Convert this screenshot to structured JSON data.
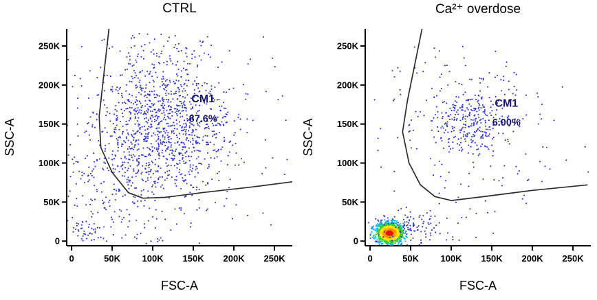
{
  "figure": {
    "background": "#ffffff",
    "dot_color": "#2a2fd4",
    "axis_color": "#000000",
    "gate_color": "#2b2b2b",
    "gate_label_color": "#16166a",
    "density_palette": [
      {
        "r": 0.45,
        "color": "#e81500"
      },
      {
        "r": 0.9,
        "color": "#ff9800"
      },
      {
        "r": 1.35,
        "color": "#ffe000"
      },
      {
        "r": 1.9,
        "color": "#2ecc2e"
      },
      {
        "r": 2.6,
        "color": "#00b4e0"
      },
      {
        "r": 99,
        "color": "#2a2fd4"
      }
    ]
  },
  "chart_data": [
    {
      "type": "scatter",
      "title": "CTRL",
      "xlabel": "FSC-A",
      "ylabel": "SSC-A",
      "xlim": [
        -6000,
        272000
      ],
      "ylim": [
        -6000,
        272000
      ],
      "ticks": {
        "values": [
          0,
          50000,
          100000,
          150000,
          200000,
          250000
        ],
        "labels": [
          "0",
          "50K",
          "100K",
          "150K",
          "200K",
          "250K"
        ]
      },
      "gate": {
        "label": "CM1",
        "percent": "87.6%",
        "label_xy": [
          162000,
          178000
        ],
        "percent_xy": [
          162000,
          153000
        ],
        "polyline": [
          [
            46000,
            272000
          ],
          [
            34000,
            160000
          ],
          [
            36000,
            120000
          ],
          [
            50000,
            88000
          ],
          [
            70000,
            62000
          ],
          [
            88000,
            55000
          ],
          [
            115000,
            56000
          ],
          [
            160000,
            62000
          ],
          [
            220000,
            69000
          ],
          [
            272000,
            76000
          ]
        ]
      },
      "clusters": [
        {
          "kind": "gauss",
          "n": 1000,
          "cx": 112000,
          "cy": 150000,
          "sx": 40000,
          "sy": 50000
        },
        {
          "kind": "gauss",
          "n": 350,
          "cx": 100000,
          "cy": 120000,
          "sx": 75000,
          "sy": 75000
        },
        {
          "kind": "gauss",
          "n": 120,
          "cx": 35000,
          "cy": 60000,
          "sx": 30000,
          "sy": 45000
        },
        {
          "kind": "gauss",
          "n": 40,
          "cx": 18000,
          "cy": 12000,
          "sx": 12000,
          "sy": 9000
        }
      ]
    },
    {
      "type": "scatter",
      "title": "Ca²⁺ overdose",
      "xlabel": "FSC-A",
      "ylabel": "SSC-A",
      "xlim": [
        -6000,
        272000
      ],
      "ylim": [
        -6000,
        272000
      ],
      "ticks": {
        "values": [
          0,
          50000,
          100000,
          150000,
          200000,
          250000
        ],
        "labels": [
          "0",
          "50K",
          "100K",
          "150K",
          "200K",
          "250K"
        ]
      },
      "gate": {
        "label": "CM1",
        "percent": "6.00%",
        "label_xy": [
          168000,
          172000
        ],
        "percent_xy": [
          168000,
          148000
        ],
        "polyline": [
          [
            64000,
            272000
          ],
          [
            46000,
            180000
          ],
          [
            40000,
            140000
          ],
          [
            48000,
            100000
          ],
          [
            62000,
            72000
          ],
          [
            80000,
            57000
          ],
          [
            100000,
            52000
          ],
          [
            140000,
            57000
          ],
          [
            200000,
            65000
          ],
          [
            268000,
            72000
          ]
        ]
      },
      "clusters": [
        {
          "kind": "density",
          "n": 1100,
          "cx": 24000,
          "cy": 10000,
          "sx": 9000,
          "sy": 7000
        },
        {
          "kind": "gauss",
          "n": 230,
          "cx": 125000,
          "cy": 155000,
          "sx": 22000,
          "sy": 22000
        },
        {
          "kind": "gauss",
          "n": 170,
          "cx": 120000,
          "cy": 150000,
          "sx": 50000,
          "sy": 50000
        },
        {
          "kind": "gauss",
          "n": 110,
          "cx": 55000,
          "cy": 18000,
          "sx": 30000,
          "sy": 12000
        },
        {
          "kind": "gauss",
          "n": 60,
          "cx": 130000,
          "cy": 120000,
          "sx": 80000,
          "sy": 80000
        }
      ]
    }
  ]
}
